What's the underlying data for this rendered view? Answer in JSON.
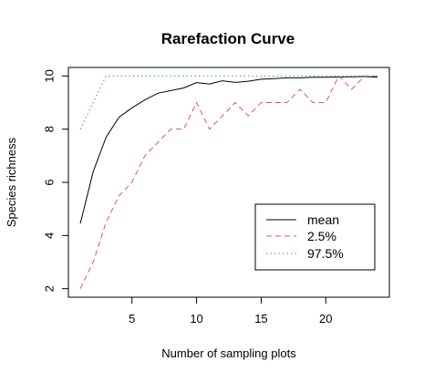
{
  "chart_data": {
    "type": "line",
    "title": "Rarefaction Curve",
    "xlabel": "Number of sampling plots",
    "ylabel": "Species richness",
    "xlim": [
      0.08,
      24.92
    ],
    "ylim": [
      1.68,
      10.32
    ],
    "xticks": [
      5,
      10,
      15,
      20
    ],
    "yticks": [
      2,
      4,
      6,
      8,
      10
    ],
    "grid": false,
    "legend_position": "bottom-right",
    "x": [
      1,
      2,
      3,
      4,
      5,
      6,
      7,
      8,
      9,
      10,
      11,
      12,
      13,
      14,
      15,
      16,
      17,
      18,
      19,
      20,
      21,
      22,
      23,
      24
    ],
    "series": [
      {
        "name": "mean",
        "color": "#000000",
        "dash": "solid",
        "values": [
          4.45,
          6.4,
          7.7,
          8.45,
          8.8,
          9.1,
          9.35,
          9.45,
          9.55,
          9.75,
          9.7,
          9.82,
          9.76,
          9.8,
          9.88,
          9.9,
          9.93,
          9.93,
          9.95,
          9.95,
          9.96,
          9.97,
          9.98,
          9.95
        ]
      },
      {
        "name": "2.5%",
        "color": "#DF536B",
        "dash": "dashed",
        "values": [
          2,
          3,
          4.5,
          5.5,
          6,
          7,
          7.5,
          8,
          8,
          9,
          8,
          8.5,
          9,
          8.5,
          9,
          9,
          9,
          9.5,
          9,
          9,
          10,
          9.5,
          10,
          10
        ]
      },
      {
        "name": "97.5%",
        "color": "#2DB34A",
        "dash": "dotted",
        "values": [
          8,
          9,
          10,
          10,
          10,
          10,
          10,
          10,
          10,
          10,
          10,
          10,
          10,
          10,
          10,
          10,
          10,
          10,
          10,
          10,
          10,
          10,
          10,
          10
        ]
      }
    ]
  }
}
